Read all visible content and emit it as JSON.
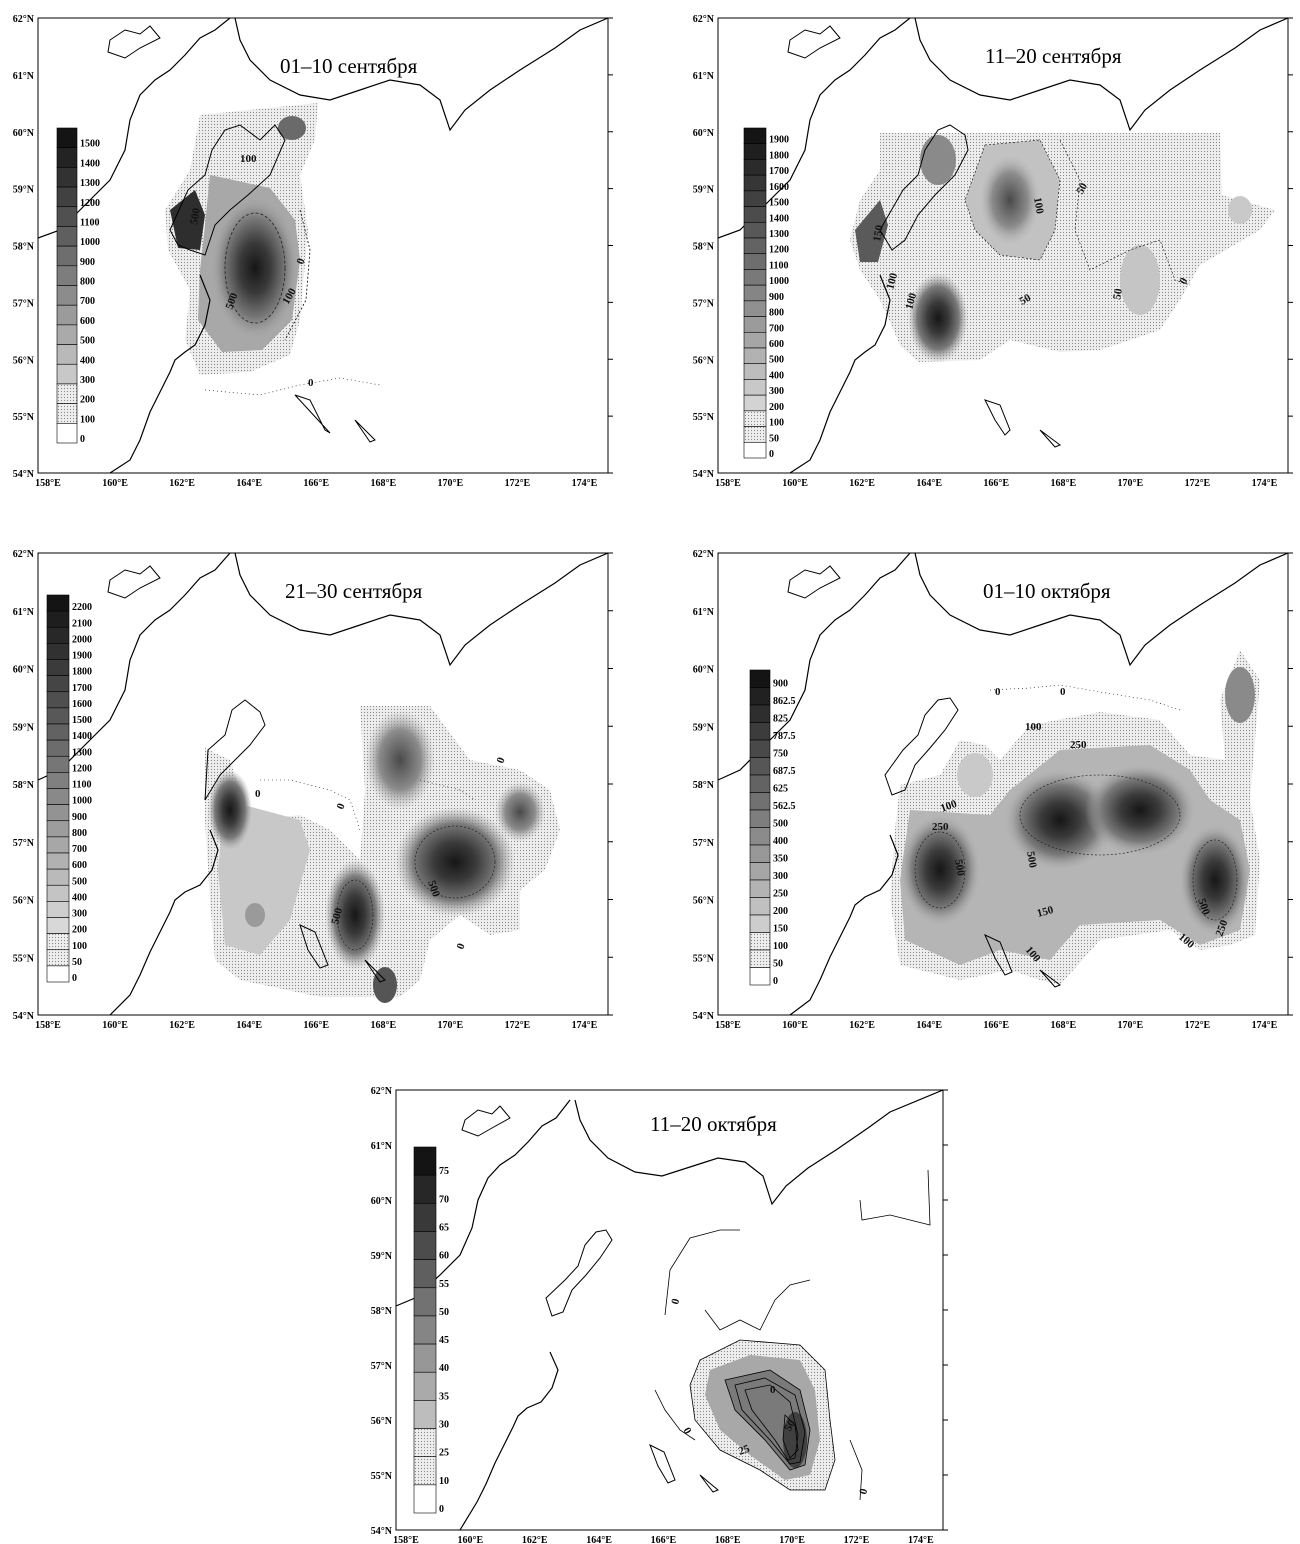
{
  "lat_labels": [
    "62°N",
    "61°N",
    "60°N",
    "59°N",
    "58°N",
    "57°N",
    "56°N",
    "55°N",
    "54°N"
  ],
  "lon_labels": [
    "158°E",
    "160°E",
    "162°E",
    "164°E",
    "166°E",
    "168°E",
    "170°E",
    "172°E",
    "174°E"
  ],
  "panels": [
    {
      "id": "p1",
      "title": "01–10 сентября",
      "legend": [
        "1500",
        "1400",
        "1300",
        "1200",
        "1100",
        "1000",
        "900",
        "800",
        "700",
        "600",
        "500",
        "400",
        "300",
        "200",
        "100",
        "0"
      ],
      "contour_labels": [
        "100",
        "500",
        "500",
        "100",
        "0",
        "0",
        "100"
      ]
    },
    {
      "id": "p2",
      "title": "11–20 сентября",
      "legend": [
        "1900",
        "1800",
        "1700",
        "1600",
        "1500",
        "1400",
        "1300",
        "1200",
        "1100",
        "1000",
        "900",
        "800",
        "700",
        "600",
        "500",
        "400",
        "300",
        "200",
        "100",
        "50",
        "0"
      ],
      "contour_labels": [
        "100",
        "50",
        "100",
        "50",
        "50",
        "0",
        "100",
        "150"
      ]
    },
    {
      "id": "p3",
      "title": "21–30 сентября",
      "legend": [
        "2200",
        "2100",
        "2000",
        "1900",
        "1800",
        "1700",
        "1600",
        "1500",
        "1400",
        "1300",
        "1200",
        "1100",
        "1000",
        "900",
        "800",
        "700",
        "600",
        "500",
        "400",
        "300",
        "200",
        "100",
        "50",
        "0"
      ],
      "contour_labels": [
        "0",
        "0",
        "0",
        "500",
        "500",
        "0"
      ]
    },
    {
      "id": "p4",
      "title": "01–10 октября",
      "legend": [
        "900",
        "862.5",
        "825",
        "787.5",
        "750",
        "687.5",
        "625",
        "562.5",
        "500",
        "400",
        "350",
        "300",
        "250",
        "200",
        "150",
        "100",
        "50",
        "0"
      ],
      "contour_labels": [
        "0",
        "0",
        "100",
        "250",
        "100",
        "250",
        "500",
        "500",
        "150",
        "100",
        "500",
        "250",
        "100"
      ]
    },
    {
      "id": "p5",
      "title": "11–20 октября",
      "legend": [
        "75",
        "70",
        "65",
        "60",
        "55",
        "50",
        "45",
        "40",
        "35",
        "30",
        "25",
        "10",
        "0"
      ],
      "contour_labels": [
        "0",
        "0",
        "0",
        "25",
        "50",
        "0"
      ]
    }
  ],
  "colors": {
    "land_line": "#000000",
    "frame": "#000000",
    "shade_dark": "#1a1a1a",
    "shade_light": "#d9d9d9"
  }
}
